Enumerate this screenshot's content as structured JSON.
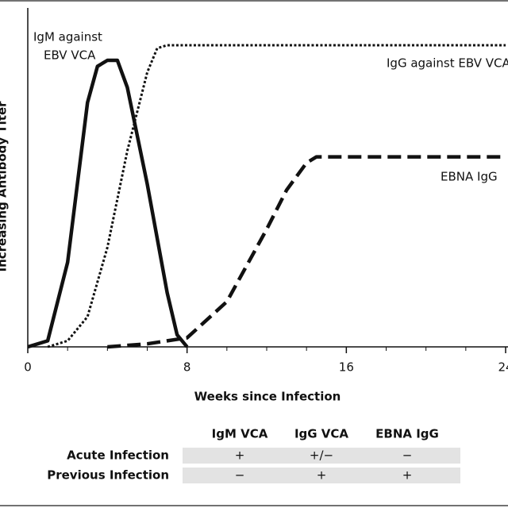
{
  "chart_data": {
    "type": "line",
    "xlabel": "Weeks since Infection",
    "ylabel": "Increasing Antibody Titer",
    "xlim": [
      0,
      24
    ],
    "ylim": [
      0,
      100
    ],
    "xticks": [
      0,
      8,
      16,
      24
    ],
    "xminorticks": [
      2,
      4,
      6,
      10,
      12,
      14,
      18,
      20,
      22
    ],
    "series": [
      {
        "color": "#111111",
        "style": "solid",
        "x": [
          0,
          1,
          2,
          3,
          3.5,
          4,
          4.5,
          5,
          6,
          7,
          7.5,
          8
        ],
        "values": [
          0,
          2,
          28,
          81,
          93,
          95,
          95,
          86,
          54,
          18,
          4,
          0
        ]
      },
      {
        "color": "#111111",
        "style": "dotted",
        "x": [
          1,
          2,
          3,
          4,
          5,
          6,
          6.5,
          7,
          24
        ],
        "values": [
          0,
          2,
          10,
          33,
          65,
          91,
          99,
          100,
          100
        ]
      },
      {
        "color": "#111111",
        "style": "dashed",
        "x": [
          4,
          6,
          8,
          10,
          12,
          13,
          14,
          14.5,
          15,
          24
        ],
        "values": [
          0,
          1,
          3,
          15,
          39,
          52,
          61,
          63,
          63,
          63
        ]
      }
    ],
    "annotations": [
      "IgM against",
      "EBV VCA",
      "IgG against EBV VCA",
      "EBNA IgG"
    ]
  },
  "table": {
    "columns": [
      "IgM VCA",
      "IgG VCA",
      "EBNA IgG"
    ],
    "rows": [
      {
        "label": "Acute Infection",
        "cells": [
          "+",
          "+/−",
          "−"
        ]
      },
      {
        "label": "Previous Infection",
        "cells": [
          "−",
          "+",
          "+"
        ]
      }
    ]
  }
}
